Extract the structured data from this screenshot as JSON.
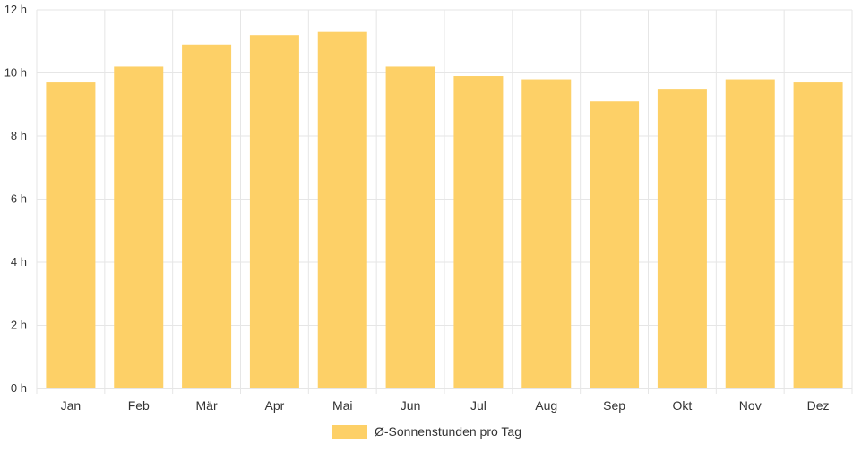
{
  "chart_data": {
    "type": "bar",
    "categories": [
      "Jan",
      "Feb",
      "Mär",
      "Apr",
      "Mai",
      "Jun",
      "Jul",
      "Aug",
      "Sep",
      "Okt",
      "Nov",
      "Dez"
    ],
    "series": [
      {
        "name": "Ø-Sonnenstunden pro Tag",
        "values": [
          9.7,
          10.2,
          10.9,
          11.2,
          11.3,
          10.2,
          9.9,
          9.8,
          9.1,
          9.5,
          9.8,
          9.7
        ]
      }
    ],
    "y_ticks": [
      "0 h",
      "2 h",
      "4 h",
      "6 h",
      "8 h",
      "10 h",
      "12 h"
    ],
    "ylim": [
      0,
      12
    ],
    "y_unit": "h",
    "grid": true,
    "legend_position": "bottom",
    "colors": {
      "bar": "#fdd067",
      "grid": "#e6e6e6",
      "axis": "#cccccc",
      "text": "#333333"
    }
  }
}
